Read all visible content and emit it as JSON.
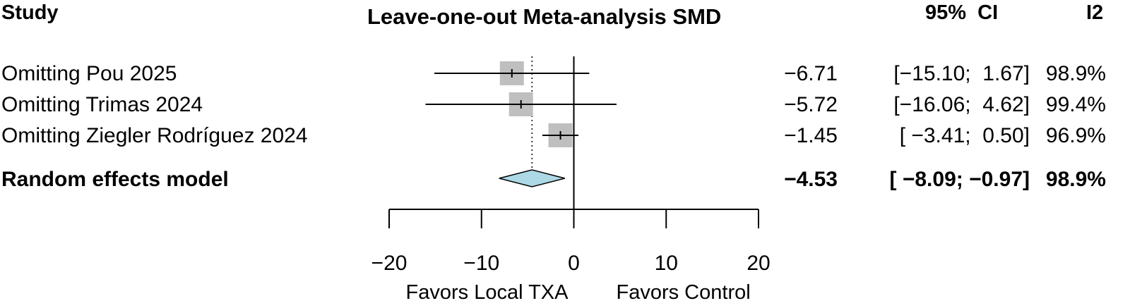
{
  "headers": {
    "study": "Study",
    "title": "Leave-one-out Meta-analysis SMD",
    "ci": "95%  CI",
    "i2": "I2"
  },
  "chart_data": {
    "type": "forest",
    "title": "Leave-one-out Meta-analysis SMD",
    "rows": [
      {
        "label": "Omitting Pou 2025",
        "est": -6.71,
        "lo": -15.1,
        "hi": 1.67,
        "est_text": "−6.71",
        "ci_text": "[−15.10;  1.67]",
        "i2_text": "98.9%"
      },
      {
        "label": "Omitting Trimas 2024",
        "est": -5.72,
        "lo": -16.06,
        "hi": 4.62,
        "est_text": "−5.72",
        "ci_text": "[−16.06;  4.62]",
        "i2_text": "99.4%"
      },
      {
        "label": "Omitting Ziegler Rodríguez 2024",
        "est": -1.45,
        "lo": -3.41,
        "hi": 0.5,
        "est_text": "−1.45",
        "ci_text": "[ −3.41;  0.50]",
        "i2_text": "96.9%"
      }
    ],
    "pooled": {
      "label": "Random effects model",
      "est": -4.53,
      "lo": -8.09,
      "hi": -0.97,
      "est_text": "−4.53",
      "ci_text": "[ −8.09; −0.97]",
      "i2_text": "98.9%"
    },
    "xlim": [
      -20,
      20
    ],
    "ticks": [
      -20,
      -10,
      0,
      10,
      20
    ],
    "tick_labels": [
      "−20",
      "−10",
      "0",
      "10",
      "20"
    ],
    "xlabel_left": "Favors Local TXA",
    "xlabel_right": "Favors Control",
    "reference_line": 0,
    "colors": {
      "box": "#bfbfbf",
      "diamond": "#add8e6",
      "line": "#000000"
    }
  }
}
